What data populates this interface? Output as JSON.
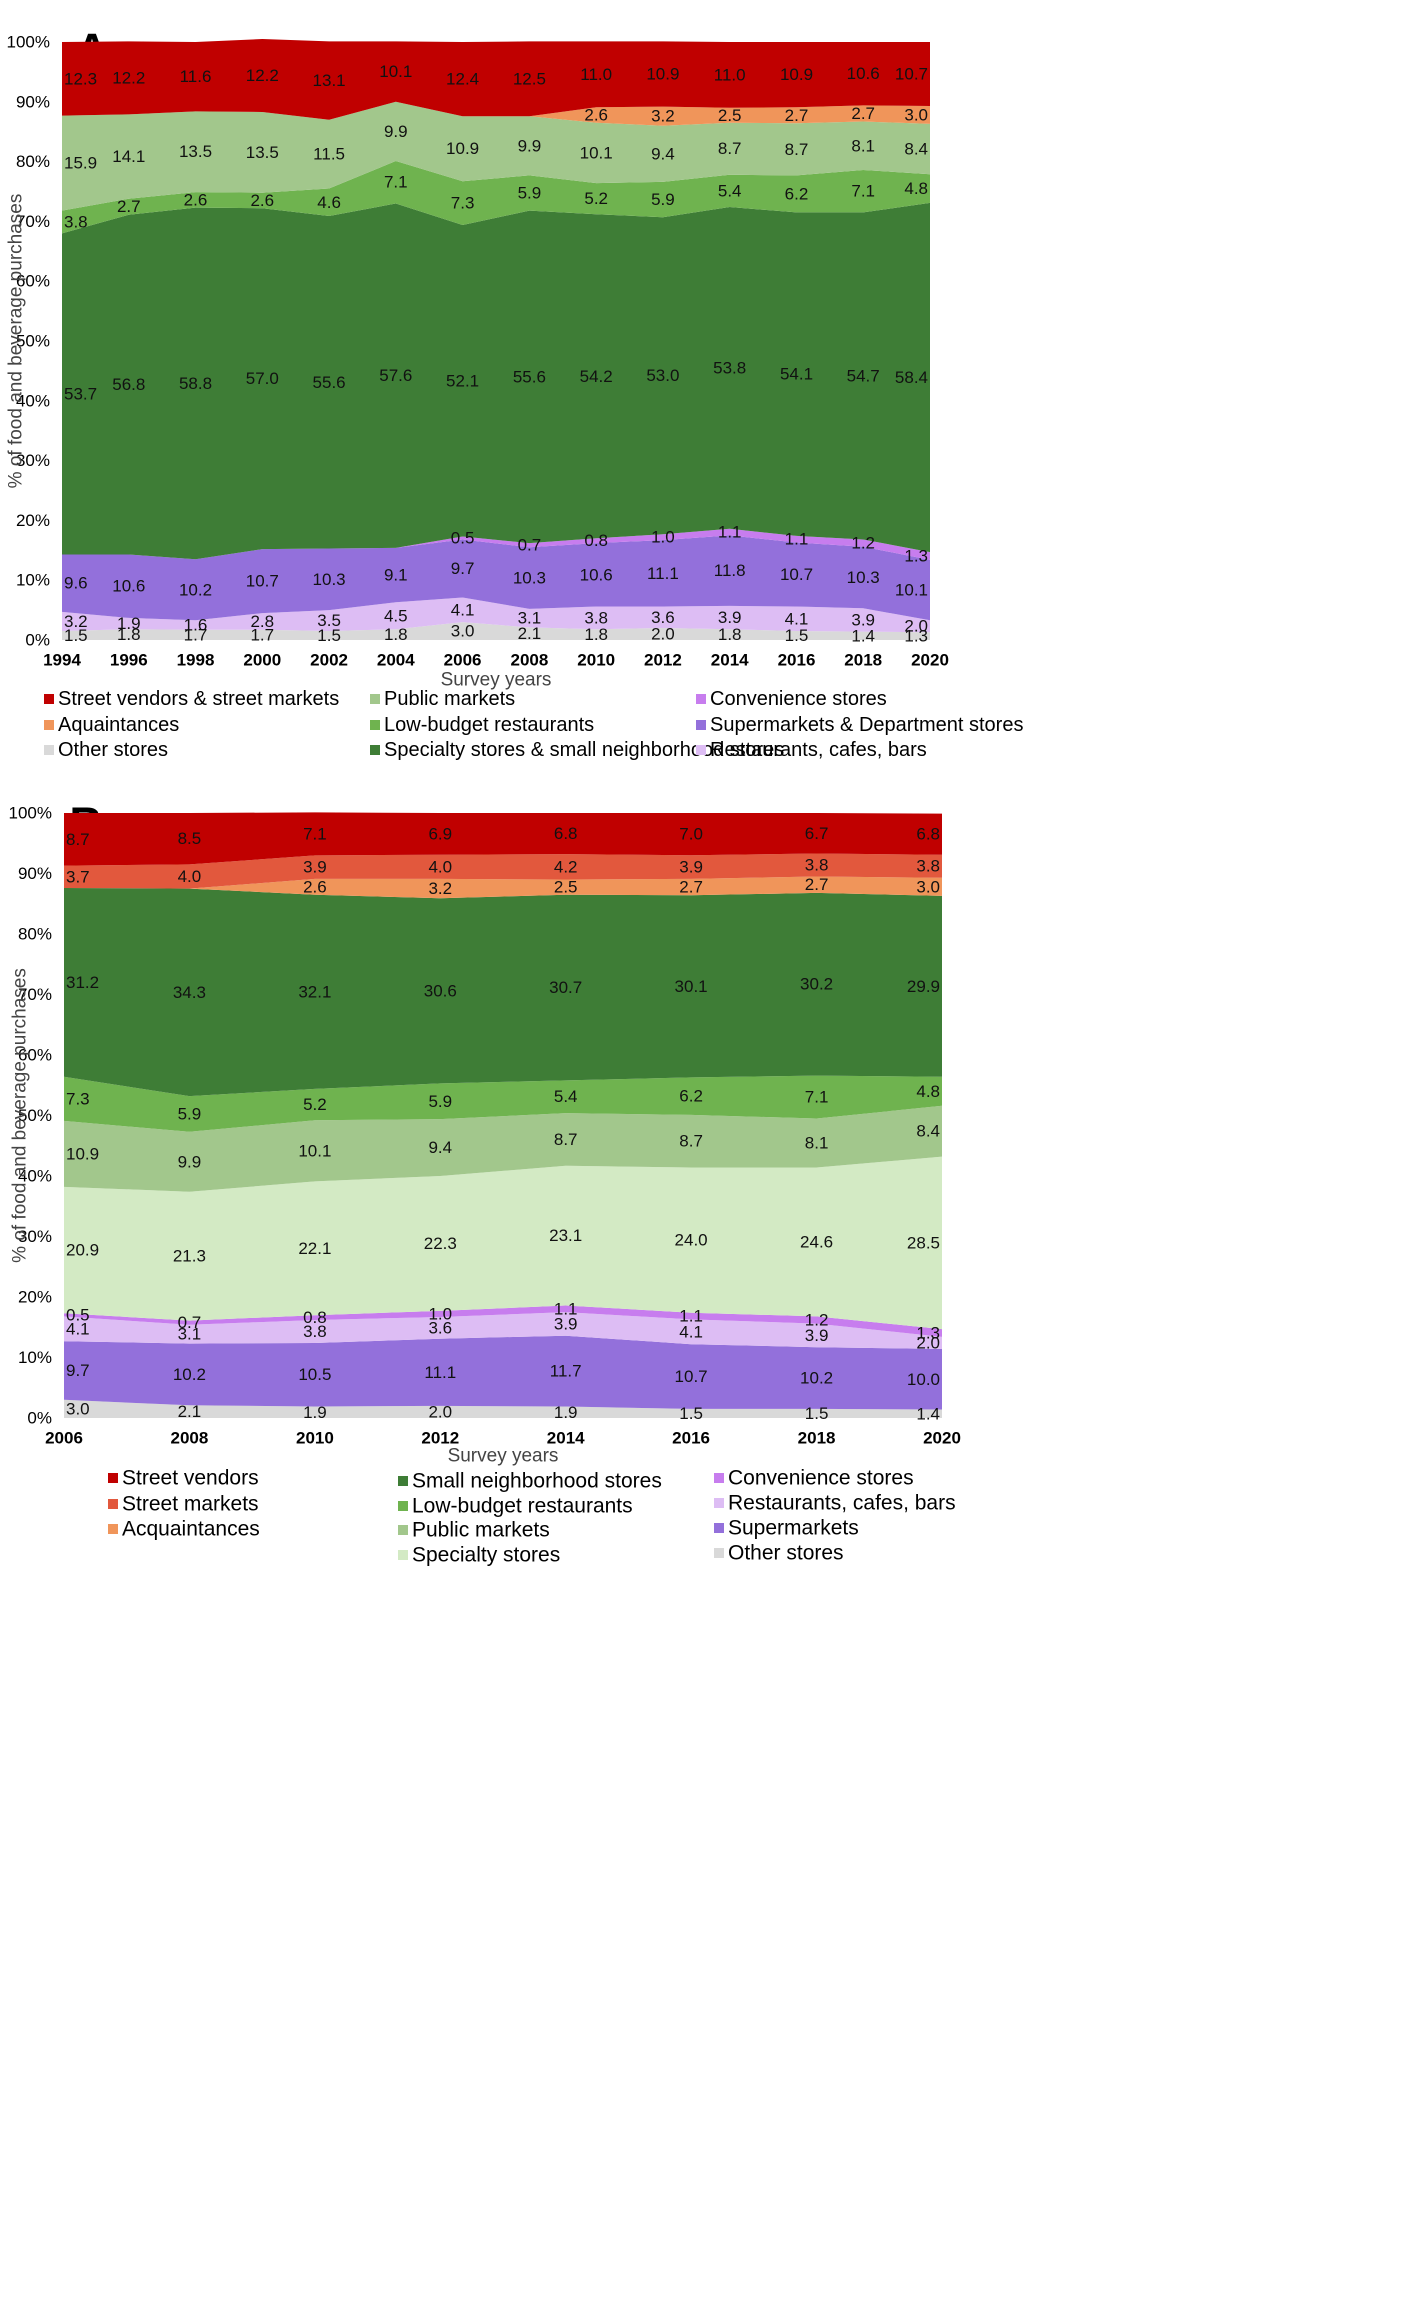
{
  "chart_data": [
    {
      "type": "area",
      "panel": "A",
      "stacked": true,
      "xlabel": "Survey years",
      "ylabel": "% of food and beverage purchases",
      "ylim": [
        0,
        100
      ],
      "yticks": [
        "0%",
        "10%",
        "20%",
        "30%",
        "40%",
        "50%",
        "60%",
        "70%",
        "80%",
        "90%",
        "100%"
      ],
      "x": [
        "1994",
        "1996",
        "1998",
        "2000",
        "2002",
        "2004",
        "2006",
        "2008",
        "2010",
        "2012",
        "2014",
        "2016",
        "2018",
        "2020"
      ],
      "series": [
        {
          "name": "Other stores",
          "color": "#d9d9d9",
          "values": [
            1.5,
            1.8,
            1.7,
            1.7,
            1.5,
            1.8,
            3.0,
            2.1,
            1.8,
            2.0,
            1.8,
            1.5,
            1.4,
            1.3
          ],
          "labels": [
            "1.5",
            "1.8",
            "1.7",
            "1.7",
            "1.5",
            "1.8",
            "3.0",
            "2.1",
            "1.8",
            "2.0",
            "1.8",
            "1.5",
            "1.4",
            "1.3"
          ]
        },
        {
          "name": "Restaurants, cafes, bars",
          "color": "#ddbdf4",
          "values": [
            3.2,
            1.9,
            1.6,
            2.8,
            3.5,
            4.5,
            4.1,
            3.1,
            3.8,
            3.6,
            3.9,
            4.1,
            3.9,
            2.0
          ],
          "labels": [
            "3.2",
            "1.9",
            "1.6",
            "2.8",
            "3.5",
            "4.5",
            "4.1",
            "3.1",
            "3.8",
            "3.6",
            "3.9",
            "4.1",
            "3.9",
            "2.0"
          ]
        },
        {
          "name": "Supermarkets & Department stores",
          "color": "#9370db",
          "values": [
            9.6,
            10.6,
            10.2,
            10.7,
            10.3,
            9.1,
            9.7,
            10.3,
            10.6,
            11.1,
            11.8,
            10.7,
            10.3,
            10.1
          ],
          "labels": [
            "9.6",
            "10.6",
            "10.2",
            "10.7",
            "10.3",
            "9.1",
            "9.7",
            "10.3",
            "10.6",
            "11.1",
            "11.8",
            "10.7",
            "10.3",
            "10.1"
          ]
        },
        {
          "name": "Convenience stores",
          "color": "#c77dee",
          "values": [
            0,
            0,
            0,
            0,
            0,
            0,
            0.5,
            0.7,
            0.8,
            1.0,
            1.1,
            1.1,
            1.2,
            1.3
          ],
          "labels": [
            "",
            "",
            "",
            "",
            "",
            "",
            "0.5",
            "0.7",
            "0.8",
            "1.0",
            "1.1",
            "1.1",
            "1.2",
            "1.3"
          ]
        },
        {
          "name": "Specialty stores  & small neighborhood stores",
          "color": "#3e7d36",
          "values": [
            53.7,
            56.8,
            58.8,
            57.0,
            55.6,
            57.6,
            52.1,
            55.6,
            54.2,
            53.0,
            53.8,
            54.1,
            54.7,
            58.4
          ],
          "labels": [
            "53.7",
            "56.8",
            "58.8",
            "57.0",
            "55.6",
            "57.6",
            "52.1",
            "55.6",
            "54.2",
            "53.0",
            "53.8",
            "54.1",
            "54.7",
            "58.4"
          ]
        },
        {
          "name": "Low-budget restaurants",
          "color": "#6fb34f",
          "values": [
            3.8,
            2.7,
            2.6,
            2.6,
            4.6,
            7.1,
            7.3,
            5.9,
            5.2,
            5.9,
            5.4,
            6.2,
            7.1,
            4.8
          ],
          "labels": [
            "3.8",
            "2.7",
            "2.6",
            "2.6",
            "4.6",
            "7.1",
            "7.3",
            "5.9",
            "5.2",
            "5.9",
            "5.4",
            "6.2",
            "7.1",
            "4.8"
          ]
        },
        {
          "name": "Public markets",
          "color": "#a2c78c",
          "values": [
            15.9,
            14.1,
            13.5,
            13.5,
            11.5,
            9.9,
            10.9,
            9.9,
            10.1,
            9.4,
            8.7,
            8.7,
            8.1,
            8.4
          ],
          "labels": [
            "15.9",
            "14.1",
            "13.5",
            "13.5",
            "11.5",
            "9.9",
            "10.9",
            "9.9",
            "10.1",
            "9.4",
            "8.7",
            "8.7",
            "8.1",
            "8.4"
          ]
        },
        {
          "name": "Aquaintances",
          "color": "#f0955a",
          "values": [
            0,
            0,
            0,
            0,
            0,
            0,
            0,
            0,
            2.6,
            3.2,
            2.5,
            2.7,
            2.7,
            3.0
          ],
          "labels": [
            "",
            "",
            "",
            "",
            "",
            "",
            "",
            "",
            "2.6",
            "3.2",
            "2.5",
            "2.7",
            "2.7",
            "3.0"
          ]
        },
        {
          "name": "Street vendors & street markets",
          "color": "#c00000",
          "values": [
            12.3,
            12.2,
            11.6,
            12.2,
            13.1,
            10.1,
            12.4,
            12.5,
            11.0,
            10.9,
            11.0,
            10.9,
            10.6,
            10.7
          ],
          "labels": [
            "12.3",
            "12.2",
            "11.6",
            "12.2",
            "13.1",
            "10.1",
            "12.4",
            "12.5",
            "11.0",
            "10.9",
            "11.0",
            "10.9",
            "10.6",
            "10.7"
          ]
        }
      ],
      "legend": {
        "position": "bottom",
        "columns": [
          [
            "Street vendors & street markets",
            "Aquaintances",
            "Other stores"
          ],
          [
            "Public markets",
            "Low-budget restaurants",
            "Specialty stores  & small neighborhood stores"
          ],
          [
            "Convenience stores",
            "Supermarkets & Department stores",
            "Restaurants, cafes, bars"
          ]
        ]
      }
    },
    {
      "type": "area",
      "panel": "B",
      "stacked": true,
      "xlabel": "Survey years",
      "ylabel": "% of food and beverage purchases",
      "ylim": [
        0,
        100
      ],
      "yticks": [
        "0%",
        "10%",
        "20%",
        "30%",
        "40%",
        "50%",
        "60%",
        "70%",
        "80%",
        "90%",
        "100%"
      ],
      "x": [
        "2006",
        "2008",
        "2010",
        "2012",
        "2014",
        "2016",
        "2018",
        "2020"
      ],
      "series": [
        {
          "name": "Other stores",
          "color": "#d9d9d9",
          "values": [
            3.0,
            2.1,
            1.9,
            2.0,
            1.9,
            1.5,
            1.5,
            1.4
          ],
          "labels": [
            "3.0",
            "2.1",
            "1.9",
            "2.0",
            "1.9",
            "1.5",
            "1.5",
            "1.4"
          ]
        },
        {
          "name": "Supermarkets",
          "color": "#9370db",
          "values": [
            9.7,
            10.2,
            10.5,
            11.1,
            11.7,
            10.7,
            10.2,
            10.0
          ],
          "labels": [
            "9.7",
            "10.2",
            "10.5",
            "11.1",
            "11.7",
            "10.7",
            "10.2",
            "10.0"
          ]
        },
        {
          "name": "Restaurants, cafes, bars",
          "color": "#ddbdf4",
          "values": [
            4.1,
            3.1,
            3.8,
            3.6,
            3.9,
            4.1,
            3.9,
            2.0
          ],
          "labels": [
            "4.1",
            "3.1",
            "3.8",
            "3.6",
            "3.9",
            "4.1",
            "3.9",
            "2.0"
          ]
        },
        {
          "name": "Convenience stores",
          "color": "#c77dee",
          "values": [
            0.5,
            0.7,
            0.8,
            1.0,
            1.1,
            1.1,
            1.2,
            1.3
          ],
          "labels": [
            "0.5",
            "0.7",
            "0.8",
            "1.0",
            "1.1",
            "1.1",
            "1.2",
            "1.3"
          ]
        },
        {
          "name": "Specialty stores",
          "color": "#d3eac4",
          "values": [
            20.9,
            21.3,
            22.1,
            22.3,
            23.1,
            24.0,
            24.6,
            28.5
          ],
          "labels": [
            "20.9",
            "21.3",
            "22.1",
            "22.3",
            "23.1",
            "24.0",
            "24.6",
            "28.5"
          ]
        },
        {
          "name": "Public markets",
          "color": "#a2c78c",
          "values": [
            10.9,
            9.9,
            10.1,
            9.4,
            8.7,
            8.7,
            8.1,
            8.4
          ],
          "labels": [
            "10.9",
            "9.9",
            "10.1",
            "9.4",
            "8.7",
            "8.7",
            "8.1",
            "8.4"
          ]
        },
        {
          "name": "Low-budget restaurants",
          "color": "#6fb34f",
          "values": [
            7.3,
            5.9,
            5.2,
            5.9,
            5.4,
            6.2,
            7.1,
            4.8
          ],
          "labels": [
            "7.3",
            "5.9",
            "5.2",
            "5.9",
            "5.4",
            "6.2",
            "7.1",
            "4.8"
          ]
        },
        {
          "name": "Small neighborhood stores",
          "color": "#3e7d36",
          "values": [
            31.2,
            34.3,
            32.1,
            30.6,
            30.7,
            30.1,
            30.2,
            29.9
          ],
          "labels": [
            "31.2",
            "34.3",
            "32.1",
            "30.6",
            "30.7",
            "30.1",
            "30.2",
            "29.9"
          ]
        },
        {
          "name": "Acquaintances",
          "color": "#f0955a",
          "values": [
            0,
            0,
            2.6,
            3.2,
            2.5,
            2.7,
            2.7,
            3.0
          ],
          "labels": [
            "",
            "",
            "2.6",
            "3.2",
            "2.5",
            "2.7",
            "2.7",
            "3.0"
          ]
        },
        {
          "name": "Street markets",
          "color": "#e2583d",
          "values": [
            3.7,
            4.0,
            3.9,
            4.0,
            4.2,
            3.9,
            3.8,
            3.8
          ],
          "labels": [
            "3.7",
            "4.0",
            "3.9",
            "4.0",
            "4.2",
            "3.9",
            "3.8",
            "3.8"
          ]
        },
        {
          "name": "Street vendors",
          "color": "#c00000",
          "values": [
            8.7,
            8.5,
            7.1,
            6.9,
            6.8,
            7.0,
            6.7,
            6.8
          ],
          "labels": [
            "8.7",
            "8.5",
            "7.1",
            "6.9",
            "6.8",
            "7.0",
            "6.7",
            "6.8"
          ]
        }
      ],
      "legend": {
        "position": "bottom",
        "columns": [
          [
            "Street vendors",
            "Street markets",
            "Acquaintances"
          ],
          [
            "Small neighborhood stores",
            "Low-budget restaurants",
            "Public markets",
            "Specialty stores"
          ],
          [
            "Convenience stores",
            "Restaurants, cafes, bars",
            "Supermarkets",
            "Other stores"
          ]
        ]
      }
    }
  ]
}
